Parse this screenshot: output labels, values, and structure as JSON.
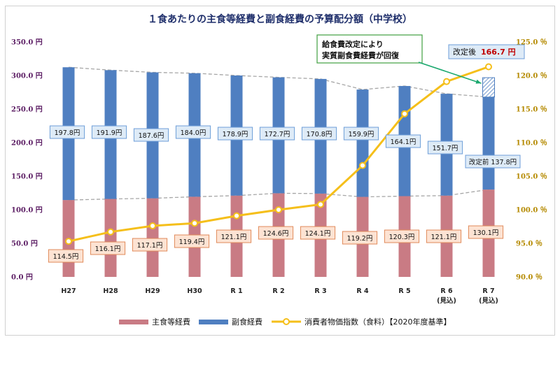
{
  "colors": {
    "main_food": "#c97b84",
    "sub_food": "#4f7fc1",
    "cpi_line": "#f5bf1a",
    "left_axis_text": "#5b1c63",
    "right_axis_text": "#b58a00",
    "callout_border": "#3f9f3f",
    "callout_arrow": "#1aa86e",
    "label_main_fill": "#fde3d3",
    "label_main_border": "#e08a5a",
    "label_sub_fill": "#deebf7",
    "label_sub_border": "#6d9ed8",
    "trend_line": "#a6a6a6"
  },
  "chart_data": {
    "type": "bar",
    "title": "１食あたりの主食等経費と副食経費の予算配分額（中学校）",
    "categories": [
      "H27",
      "H28",
      "H29",
      "H30",
      "R 1",
      "R 2",
      "R 3",
      "R 4",
      "R 5",
      "R 6",
      "R 7"
    ],
    "category_sublabels": [
      "",
      "",
      "",
      "",
      "",
      "",
      "",
      "",
      "",
      "(見込)",
      "(見込)"
    ],
    "stacked": true,
    "series": [
      {
        "name": "主食等経費",
        "axis": "left",
        "values": [
          114.5,
          116.1,
          117.1,
          119.4,
          121.1,
          124.6,
          124.1,
          119.2,
          120.3,
          121.1,
          130.1
        ],
        "value_labels": [
          "114.5円",
          "116.1円",
          "117.1円",
          "119.4円",
          "121.1円",
          "124.6円",
          "124.1円",
          "119.2円",
          "120.3円",
          "121.1円",
          "130.1円"
        ]
      },
      {
        "name": "副食経費",
        "axis": "left",
        "values": [
          197.8,
          191.9,
          187.6,
          184.0,
          178.9,
          172.7,
          170.8,
          159.9,
          164.1,
          151.7,
          137.8
        ],
        "value_labels": [
          "197.8円",
          "191.9円",
          "187.6円",
          "184.0円",
          "178.9円",
          "172.7円",
          "170.8円",
          "159.9円",
          "164.1円",
          "151.7円",
          "改定前 137.8円"
        ]
      },
      {
        "name": "消費者物価指数（食料）【2020年度基準】",
        "axis": "right",
        "type": "line",
        "values": [
          95.3,
          96.7,
          97.6,
          98.0,
          99.1,
          100.0,
          100.8,
          106.6,
          114.3,
          119.1,
          121.3
        ]
      }
    ],
    "revised_sub_food": {
      "category": "R 7",
      "label": "改定後",
      "value": 166.7,
      "value_label": "166.7 円"
    },
    "ylim_left": [
      0,
      350
    ],
    "yticks_left": [
      "0.0 円",
      "50.0 円",
      "100.0 円",
      "150.0 円",
      "200.0 円",
      "250.0 円",
      "300.0 円",
      "350.0 円"
    ],
    "ylim_right": [
      90,
      125
    ],
    "yticks_right": [
      "90.0 ％",
      "95.0 ％",
      "100.0 ％",
      "105.0 ％",
      "110.0 ％",
      "115.0 ％",
      "120.0 ％",
      "125.0 ％"
    ],
    "annotation": {
      "line1": "給食費改定により",
      "line2": "実質副食費経費が回復"
    },
    "legend_position": "bottom",
    "grid": false
  }
}
